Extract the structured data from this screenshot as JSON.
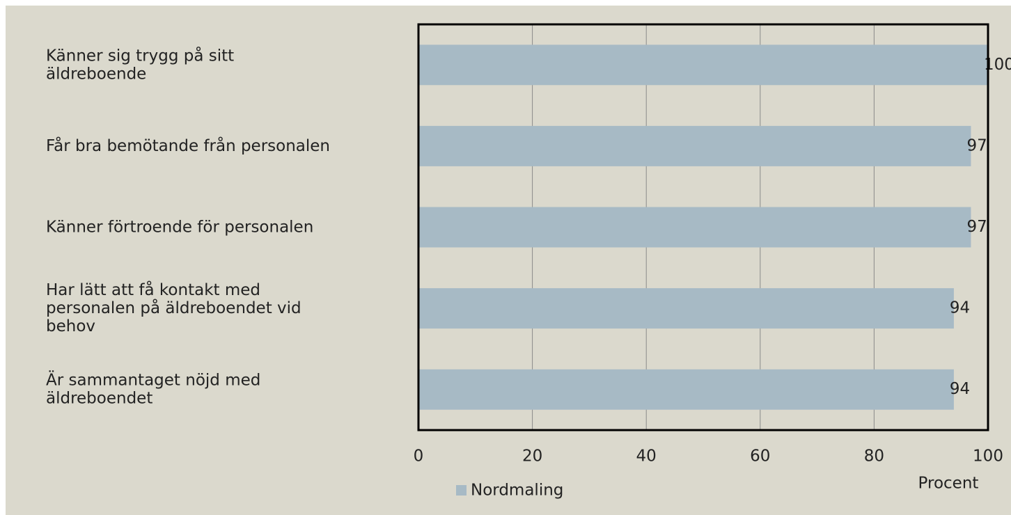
{
  "chart_data": {
    "type": "barh",
    "categories": [
      "Känner sig trygg på sitt\näldreboende",
      "Får bra bemötande från personalen",
      "Känner förtroende för personalen",
      "Har lätt att få kontakt med\npersonalen på äldreboendet vid\nbehov",
      "Är sammantaget nöjd med\näldreboendet"
    ],
    "series": [
      {
        "name": "Nordmaling",
        "color": "#a7bac5",
        "values": [
          100,
          97,
          97,
          94,
          94
        ]
      }
    ],
    "xlim": [
      0,
      100
    ],
    "xticks": [
      0,
      20,
      40,
      60,
      80,
      100
    ],
    "xlabel": "Procent",
    "grid": true,
    "legend": "bottom"
  }
}
